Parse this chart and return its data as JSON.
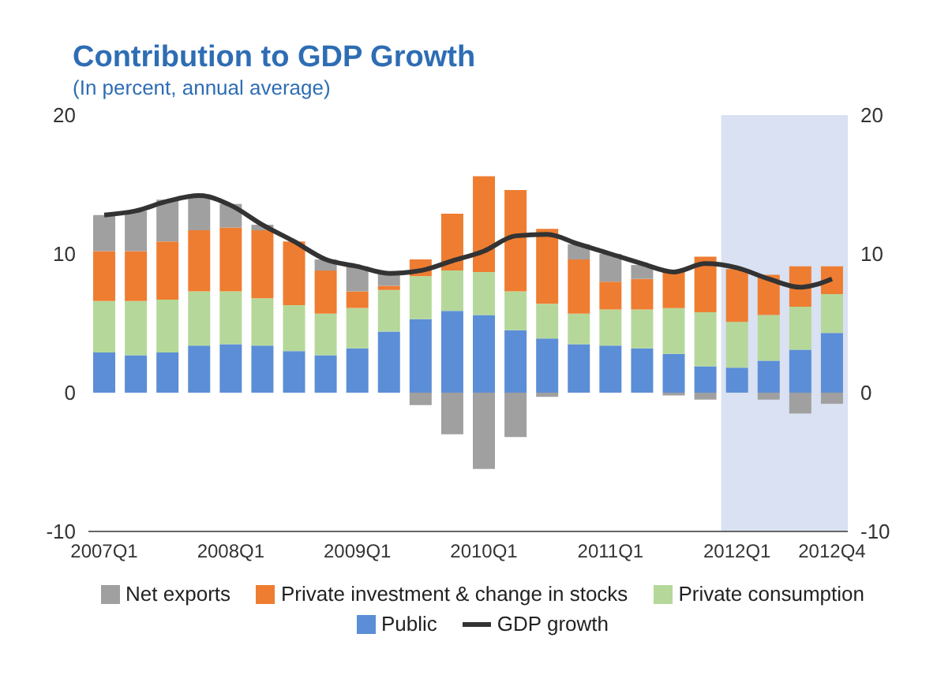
{
  "chart_data": {
    "type": "bar",
    "title": "Contribution to GDP Growth",
    "subtitle": "(In percent, annual average)",
    "stacked": true,
    "categories": [
      "2007Q1",
      null,
      null,
      null,
      "2008Q1",
      null,
      null,
      null,
      "2009Q1",
      null,
      null,
      null,
      "2010Q1",
      null,
      null,
      null,
      "2011Q1",
      null,
      null,
      null,
      "2012Q1",
      null,
      null,
      "2012Q4"
    ],
    "series": [
      {
        "name": "Public",
        "color": "#5b8ed6",
        "values": [
          2.9,
          2.7,
          2.9,
          3.4,
          3.5,
          3.4,
          3.0,
          2.7,
          3.2,
          4.4,
          5.3,
          5.9,
          5.6,
          4.5,
          3.9,
          3.5,
          3.4,
          3.2,
          2.8,
          1.9,
          1.8,
          2.3,
          3.1,
          4.3
        ]
      },
      {
        "name": "Private consumption",
        "color": "#b5d89a",
        "values": [
          3.7,
          3.9,
          3.8,
          3.9,
          3.8,
          3.4,
          3.3,
          3.0,
          2.9,
          3.0,
          3.1,
          2.9,
          3.1,
          2.8,
          2.5,
          2.2,
          2.6,
          2.8,
          3.3,
          3.9,
          3.3,
          3.3,
          3.1,
          2.8
        ]
      },
      {
        "name": "Private investment & change in stocks",
        "color": "#ee7d31",
        "values": [
          3.6,
          3.6,
          4.2,
          4.4,
          4.6,
          4.9,
          4.6,
          3.1,
          1.2,
          0.3,
          1.2,
          4.1,
          6.9,
          7.3,
          5.4,
          3.9,
          2.0,
          2.2,
          2.6,
          4.0,
          3.8,
          2.9,
          2.9,
          2.0
        ]
      },
      {
        "name": "Net exports",
        "color": "#a0a0a0",
        "values": [
          2.6,
          2.9,
          3.0,
          2.6,
          1.7,
          0.4,
          0,
          0.8,
          1.8,
          0.9,
          -0.9,
          -3.0,
          -5.5,
          -3.2,
          -0.3,
          1.1,
          2.0,
          1.0,
          -0.2,
          -0.5,
          0,
          -0.5,
          -1.5,
          -0.8
        ]
      },
      {
        "name": "GDP growth",
        "type": "line",
        "color": "#333333",
        "values": [
          12.8,
          13.1,
          13.8,
          14.2,
          13.5,
          12.1,
          10.9,
          9.6,
          9.1,
          8.6,
          8.8,
          9.5,
          10.2,
          11.3,
          11.4,
          10.7,
          10.0,
          9.3,
          8.7,
          9.3,
          9.0,
          8.2,
          7.6,
          8.2
        ]
      }
    ],
    "ylim": [
      -10,
      20
    ],
    "yticks": [
      -10,
      0,
      10,
      20
    ],
    "y2lim": [
      -10,
      20
    ],
    "y2ticks": [
      -10,
      0,
      10,
      20
    ],
    "bands": [
      {
        "axis": "x",
        "from": "2012Q1",
        "to": "2012Q4",
        "color": "#d9e1f2"
      }
    ],
    "grid": false,
    "legend": "bottom",
    "marker": "none",
    "line_style": "solid"
  }
}
